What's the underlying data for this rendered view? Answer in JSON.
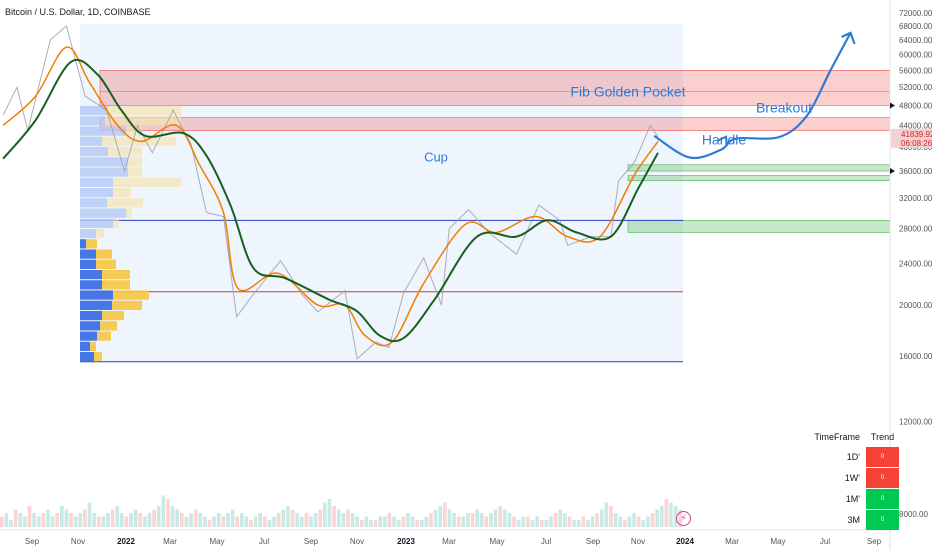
{
  "header": {
    "title": "Bitcoin / U.S. Dollar, 1D, COINBASE"
  },
  "chart_data": {
    "type": "line",
    "symbol": "Bitcoin / U.S. Dollar",
    "interval": "1D",
    "exchange": "COINBASE",
    "x_ticks": [
      "Sep",
      "Nov",
      "2022",
      "Mar",
      "May",
      "Jul",
      "Sep",
      "Nov",
      "2023",
      "Mar",
      "May",
      "Jul",
      "Sep",
      "Nov",
      "2024",
      "Mar",
      "May",
      "Jul",
      "Sep"
    ],
    "y_ticks": [
      "72000.00",
      "68000.00",
      "64000.00",
      "60000.00",
      "56000.00",
      "52000.00",
      "48000.00",
      "44000.00",
      "40000.00",
      "36000.00",
      "32000.00",
      "28000.00",
      "24000.00",
      "20000.00",
      "16000.00",
      "12000.00",
      "8000.00"
    ],
    "y_scale": "log",
    "ylim": [
      7000,
      75000
    ],
    "last_price": "41839.92",
    "countdown": "06:08:26",
    "price_series": {
      "name": "",
      "x": [
        "2021-08-20",
        "2021-09-07",
        "2021-09-21",
        "2021-10-20",
        "2021-11-10",
        "2021-12-04",
        "2022-01-01",
        "2022-01-24",
        "2022-02-10",
        "2022-03-01",
        "2022-03-28",
        "2022-04-20",
        "2022-05-10",
        "2022-06-01",
        "2022-06-18",
        "2022-07-10",
        "2022-08-14",
        "2022-09-10",
        "2022-10-01",
        "2022-11-05",
        "2022-11-21",
        "2022-12-15",
        "2023-01-01",
        "2023-01-20",
        "2023-02-15",
        "2023-03-10",
        "2023-03-20",
        "2023-04-14",
        "2023-05-10",
        "2023-06-15",
        "2023-07-14",
        "2023-08-10",
        "2023-08-20",
        "2023-09-20",
        "2023-10-15",
        "2023-10-25",
        "2023-11-15",
        "2023-12-05",
        "2023-12-15"
      ],
      "y": [
        46000,
        52000,
        43000,
        64000,
        68000,
        50000,
        47000,
        36000,
        44000,
        39000,
        47000,
        40500,
        30000,
        29500,
        19000,
        21000,
        24300,
        21000,
        19400,
        21300,
        15800,
        17000,
        16600,
        21100,
        24600,
        20000,
        28000,
        30400,
        27500,
        25000,
        31000,
        29000,
        26000,
        27000,
        27000,
        34500,
        37500,
        44000,
        41800
      ]
    },
    "ema_fast": {
      "name": "",
      "x": [
        "2021-08-20",
        "2021-10-01",
        "2021-11-10",
        "2021-12-10",
        "2022-01-15",
        "2022-02-15",
        "2022-04-01",
        "2022-05-01",
        "2022-06-01",
        "2022-06-20",
        "2022-08-10",
        "2022-10-01",
        "2022-11-05",
        "2022-12-01",
        "2023-01-05",
        "2023-02-15",
        "2023-04-10",
        "2023-05-20",
        "2023-07-10",
        "2023-08-20",
        "2023-10-01",
        "2023-11-15",
        "2023-12-15"
      ],
      "y": [
        44000,
        50000,
        62000,
        53000,
        44000,
        41000,
        44000,
        37000,
        30000,
        21500,
        23000,
        20000,
        20000,
        17500,
        17000,
        22000,
        28500,
        27500,
        29500,
        27000,
        27000,
        35500,
        41000
      ]
    },
    "ema_slow": {
      "name": "",
      "x": [
        "2021-08-20",
        "2021-10-01",
        "2021-11-15",
        "2021-12-20",
        "2022-01-20",
        "2022-02-20",
        "2022-04-10",
        "2022-05-10",
        "2022-06-10",
        "2022-07-10",
        "2022-08-20",
        "2022-10-15",
        "2022-11-20",
        "2022-12-20",
        "2023-01-20",
        "2023-03-01",
        "2023-04-25",
        "2023-06-15",
        "2023-07-25",
        "2023-09-01",
        "2023-10-15",
        "2023-11-20",
        "2023-12-15"
      ],
      "y": [
        38000,
        45000,
        58000,
        55000,
        47000,
        42000,
        42500,
        38500,
        31000,
        23500,
        22500,
        20500,
        19500,
        17500,
        17300,
        20500,
        27000,
        27000,
        29000,
        27500,
        27000,
        33500,
        39000
      ]
    },
    "zones": [
      {
        "type": "resistance",
        "low": 48000,
        "high": 56000
      },
      {
        "type": "resistance",
        "low": 43000,
        "high": 45500
      },
      {
        "type": "support",
        "low": 36000,
        "high": 37000
      },
      {
        "type": "support",
        "low": 34500,
        "high": 35300
      },
      {
        "type": "support",
        "low": 27500,
        "high": 29000
      }
    ],
    "horizontal_lines": [
      {
        "value": 29000,
        "color": "#2a3fbf"
      },
      {
        "value": 21200,
        "color": "#d23c3c"
      },
      {
        "value": 15600,
        "color": "#2a3fbf"
      }
    ],
    "annotations": [
      {
        "text": "Fib Golden Pocket"
      },
      {
        "text": "Breakout"
      },
      {
        "text": "Handle"
      },
      {
        "text": "Cup"
      }
    ],
    "projection": {
      "name": "",
      "x": [
        "2023-12-10",
        "2024-01-25",
        "2024-03-05",
        "2024-03-25",
        "2024-05-20",
        "2024-06-25",
        "2024-07-25",
        "2024-08-20"
      ],
      "y": [
        42000,
        38200,
        39500,
        41500,
        41800,
        46000,
        56000,
        66000
      ]
    },
    "volume_profile": {
      "buy": [
        1400,
        1250,
        2300,
        1100,
        1400,
        2400,
        2400,
        1650,
        1650,
        1350,
        2300,
        1650,
        800,
        300,
        800,
        800,
        1100,
        1100,
        1650,
        1600,
        1100,
        1000,
        850,
        500,
        700
      ],
      "sell": [
        3700,
        3800,
        800,
        3700,
        1700,
        700,
        700,
        3400,
        900,
        1800,
        300,
        300,
        400,
        550,
        800,
        1000,
        1400,
        1400,
        1800,
        1500,
        1100,
        850,
        700,
        300,
        400
      ]
    },
    "volume": [
      3,
      4,
      2,
      5,
      4,
      3,
      6,
      4,
      3,
      4,
      5,
      3,
      4,
      6,
      5,
      4,
      3,
      4,
      5,
      7,
      4,
      3,
      3,
      4,
      5,
      6,
      4,
      3,
      4,
      5,
      4,
      3,
      4,
      5,
      6,
      9,
      8,
      6,
      5,
      4,
      3,
      4,
      5,
      4,
      3,
      2,
      3,
      4,
      3,
      4,
      5,
      3,
      4,
      3,
      2,
      3,
      4,
      3,
      2,
      3,
      4,
      5,
      6,
      5,
      4,
      3,
      4,
      3,
      4,
      5,
      7,
      8,
      6,
      5,
      4,
      5,
      4,
      3,
      2,
      3,
      2,
      2,
      3,
      3,
      4,
      3,
      2,
      3,
      4,
      3,
      2,
      2,
      3,
      4,
      5,
      6,
      7,
      5,
      4,
      3,
      3,
      4,
      4,
      5,
      4,
      3,
      4,
      5,
      6,
      5,
      4,
      3,
      2,
      3,
      3,
      2,
      3,
      2,
      2,
      3,
      4,
      5,
      4,
      3,
      2,
      2,
      3,
      2,
      3,
      4,
      5,
      7,
      6,
      4,
      3,
      2,
      3,
      4,
      3,
      2,
      3,
      4,
      5,
      6,
      8,
      7,
      6,
      5
    ],
    "trend_table": {
      "headers": [
        "TimeFrame",
        "Trend"
      ],
      "rows": [
        {
          "tf": "1D'",
          "value": "0",
          "color": "#f44336"
        },
        {
          "tf": "1W'",
          "value": "0",
          "color": "#f44336"
        },
        {
          "tf": "1M'",
          "value": "0",
          "color": "#00c853"
        },
        {
          "tf": "3M",
          "value": "0",
          "color": "#00c853"
        }
      ]
    }
  }
}
